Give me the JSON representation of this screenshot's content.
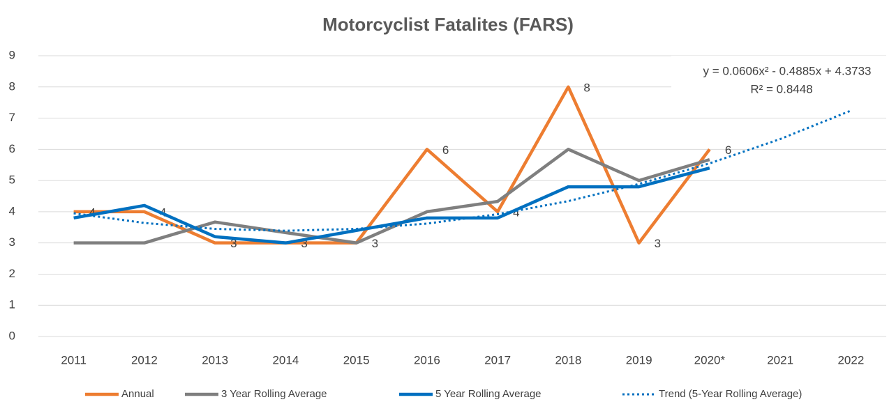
{
  "chart_data": {
    "type": "line",
    "title": "Motorcyclist Fatalites (FARS)",
    "categories": [
      "2011",
      "2012",
      "2013",
      "2014",
      "2015",
      "2016",
      "2017",
      "2018",
      "2019",
      "2020*",
      "2021",
      "2022"
    ],
    "series": [
      {
        "name": "Annual",
        "color": "#ed7d31",
        "style": "solid",
        "data_labels": true,
        "values": [
          4,
          4,
          3,
          3,
          3,
          6,
          4,
          8,
          3,
          6,
          null,
          null
        ]
      },
      {
        "name": "3 Year Rolling Average",
        "color": "#7f7f7f",
        "style": "solid",
        "values": [
          3,
          3,
          3.67,
          3.33,
          3,
          4,
          4.33,
          6,
          5,
          5.67,
          null,
          null
        ]
      },
      {
        "name": "5 Year Rolling Average",
        "color": "#0070c0",
        "style": "solid",
        "values": [
          3.8,
          4.2,
          3.2,
          3.0,
          3.4,
          3.8,
          3.8,
          4.8,
          4.8,
          5.4,
          null,
          null
        ]
      },
      {
        "name": "Trend (5-Year Rolling Average)",
        "color": "#0070c0",
        "style": "dotted",
        "values": [
          3.95,
          3.64,
          3.45,
          3.39,
          3.45,
          3.62,
          3.92,
          4.34,
          4.89,
          5.55,
          6.33,
          7.24
        ]
      }
    ],
    "annotations": [
      "y = 0.0606x² - 0.4885x + 4.3733",
      "R² = 0.8448"
    ],
    "ylim": [
      0,
      9
    ],
    "yticks": [
      0,
      1,
      2,
      3,
      4,
      5,
      6,
      7,
      8,
      9
    ],
    "grid": true,
    "legend": "bottom"
  }
}
